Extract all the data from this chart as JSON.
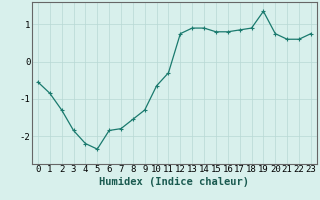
{
  "x": [
    0,
    1,
    2,
    3,
    4,
    5,
    6,
    7,
    8,
    9,
    10,
    11,
    12,
    13,
    14,
    15,
    16,
    17,
    18,
    19,
    20,
    21,
    22,
    23
  ],
  "y": [
    -0.55,
    -0.85,
    -1.3,
    -1.85,
    -2.2,
    -2.35,
    -1.85,
    -1.8,
    -1.55,
    -1.3,
    -0.65,
    -0.3,
    0.75,
    0.9,
    0.9,
    0.8,
    0.8,
    0.85,
    0.9,
    1.35,
    0.75,
    0.6,
    0.6,
    0.75
  ],
  "line_color": "#1a7a6e",
  "marker": "+",
  "marker_size": 3,
  "marker_linewidth": 0.8,
  "line_width": 0.9,
  "bg_color": "#d8f0ec",
  "grid_color": "#b8d8d4",
  "xlabel": "Humidex (Indice chaleur)",
  "ylim": [
    -2.75,
    1.6
  ],
  "yticks": [
    -2,
    -1,
    0,
    1
  ],
  "xlim": [
    -0.5,
    23.5
  ],
  "xticks": [
    0,
    1,
    2,
    3,
    4,
    5,
    6,
    7,
    8,
    9,
    10,
    11,
    12,
    13,
    14,
    15,
    16,
    17,
    18,
    19,
    20,
    21,
    22,
    23
  ],
  "xtick_labels": [
    "0",
    "1",
    "2",
    "3",
    "4",
    "5",
    "6",
    "7",
    "8",
    "9",
    "10",
    "11",
    "12",
    "13",
    "14",
    "15",
    "16",
    "17",
    "18",
    "19",
    "20",
    "21",
    "22",
    "23"
  ],
  "tick_font_size": 6.5,
  "xlabel_fontsize": 7.5,
  "xlabel_fontweight": "bold"
}
